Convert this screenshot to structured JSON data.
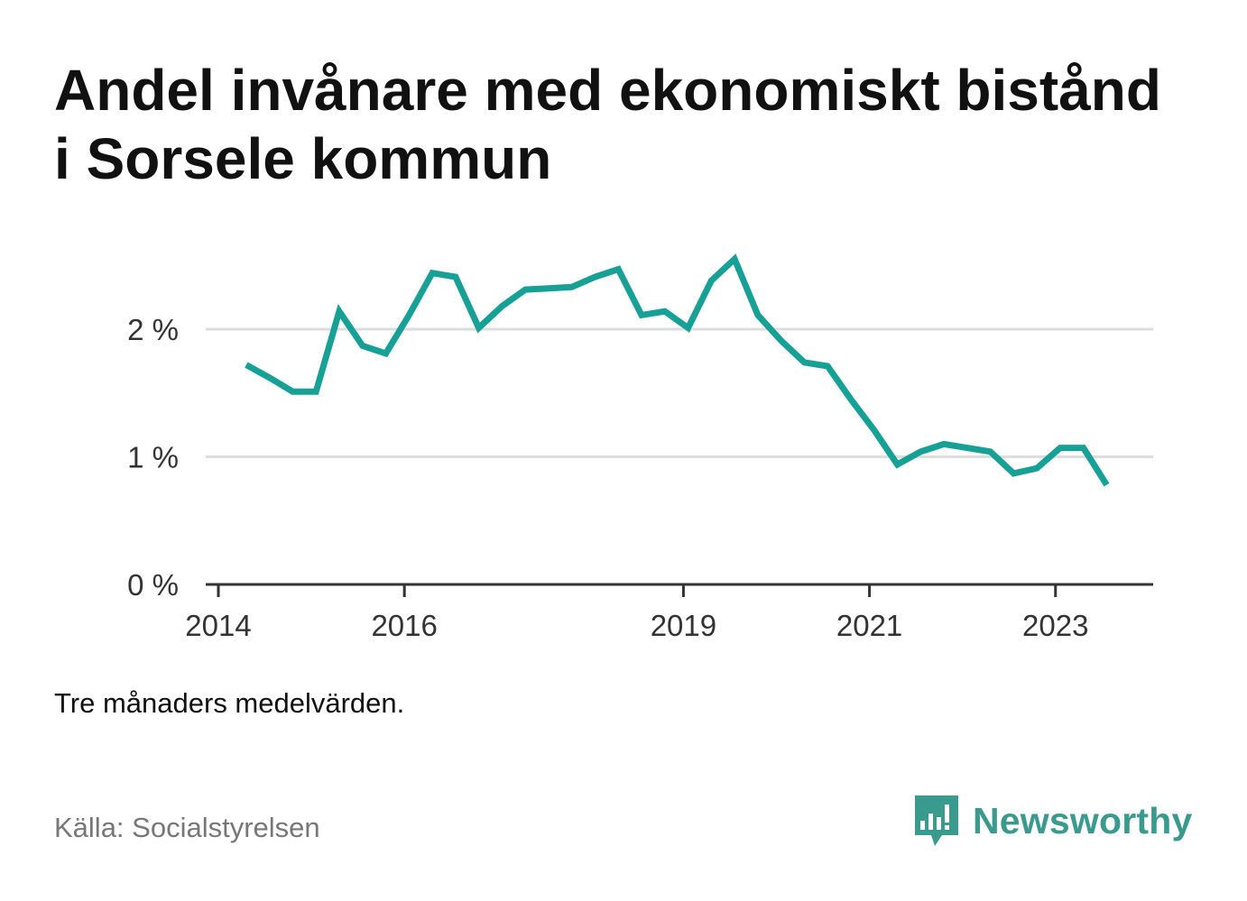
{
  "title": "Andel invånare med ekonomiskt bistånd i Sorsele kommun",
  "note": "Tre månaders medelvärden.",
  "source": "Källa: Socialstyrelsen",
  "logo": {
    "text": "Newsworthy",
    "icon": "newsworthy-chart-bubble-icon",
    "color": "#3a9a8e"
  },
  "colors": {
    "line": "#16a096",
    "grid": "#dddddd",
    "axis": "#333333"
  },
  "chart_data": {
    "type": "line",
    "title": "Andel invånare med ekonomiskt bistånd i Sorsele kommun",
    "xlabel": "",
    "ylabel": "",
    "x_ticks": [
      2014,
      2016,
      2019,
      2021,
      2023
    ],
    "y_ticks": [
      0,
      1,
      2
    ],
    "y_tick_labels": [
      "0 %",
      "1 %",
      "2 %"
    ],
    "xlim": [
      2014,
      2024.05
    ],
    "ylim": [
      0,
      2.0
    ],
    "grid": true,
    "series": [
      {
        "x": [
          2014.3,
          2014.55,
          2014.8,
          2015.05,
          2015.3,
          2015.55,
          2015.8,
          2016.05,
          2016.3,
          2016.55,
          2016.8,
          2017.05,
          2017.3,
          2017.55,
          2017.8,
          2018.05,
          2018.3,
          2018.55,
          2018.8,
          2019.05,
          2019.3,
          2019.55,
          2019.8,
          2020.05,
          2020.3,
          2020.55,
          2020.8,
          2021.05,
          2021.3,
          2021.55,
          2021.8,
          2022.05,
          2022.3,
          2022.55,
          2022.8,
          2023.05,
          2023.3,
          2023.55
        ],
        "y": [
          1.72,
          1.62,
          1.51,
          1.51,
          2.14,
          1.87,
          1.81,
          2.11,
          2.44,
          2.41,
          2.01,
          2.18,
          2.31,
          2.32,
          2.33,
          2.41,
          2.47,
          2.11,
          2.14,
          2.01,
          2.38,
          2.55,
          2.11,
          1.91,
          1.74,
          1.71,
          1.45,
          1.21,
          0.94,
          1.04,
          1.1,
          1.07,
          1.04,
          0.87,
          0.91,
          1.07,
          1.07,
          0.78
        ]
      }
    ]
  }
}
